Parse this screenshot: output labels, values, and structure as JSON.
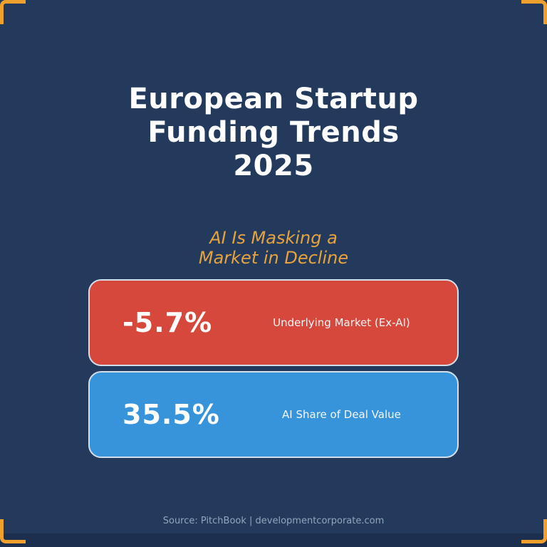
{
  "page": {
    "background_color": "#233a5d",
    "bottom_bar_color": "#1c2f4f",
    "accent_orange": "#f0a02c"
  },
  "title": {
    "lines": [
      "European Startup",
      "Funding Trends",
      "2025"
    ],
    "color": "#ffffff"
  },
  "subtitle": {
    "lines": [
      "AI Is Masking a",
      "Market in Decline"
    ],
    "color": "#e7a33c"
  },
  "stats": [
    {
      "value": "-5.7%",
      "label": "Underlying Market (Ex-AI)",
      "color": "#d6473c"
    },
    {
      "value": "35.5%",
      "label": "AI Share of Deal Value",
      "color": "#3794da"
    }
  ],
  "footer": {
    "source": "Source: PitchBook | developmentcorporate.com"
  },
  "chart_data": {
    "type": "table",
    "title": "European Startup Funding Trends 2025",
    "subtitle": "AI Is Masking a Market in Decline",
    "categories": [
      "Underlying Market (Ex-AI)",
      "AI Share of Deal Value"
    ],
    "values": [
      -5.7,
      35.5
    ],
    "unit": "%",
    "annotations": [
      "Source: PitchBook | developmentcorporate.com"
    ]
  }
}
